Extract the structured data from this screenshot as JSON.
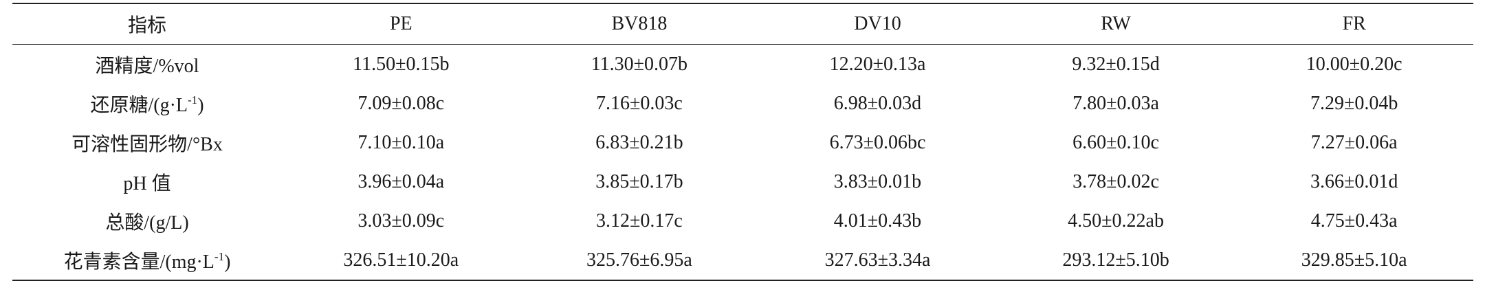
{
  "table": {
    "header": [
      "指标",
      "PE",
      "BV818",
      "DV10",
      "RW",
      "FR"
    ],
    "rows": [
      {
        "label": [
          "酒精度/%vol"
        ],
        "values": [
          "11.50±0.15b",
          "11.30±0.07b",
          "12.20±0.13a",
          "9.32±0.15d",
          "10.00±0.20c"
        ]
      },
      {
        "label": [
          "还原糖/(g·L",
          "-1",
          ")"
        ],
        "values": [
          "7.09±0.08c",
          "7.16±0.03c",
          "6.98±0.03d",
          "7.80±0.03a",
          "7.29±0.04b"
        ]
      },
      {
        "label": [
          "可溶性固形物/°Bx"
        ],
        "values": [
          "7.10±0.10a",
          "6.83±0.21b",
          "6.73±0.06bc",
          "6.60±0.10c",
          "7.27±0.06a"
        ]
      },
      {
        "label": [
          "pH 值"
        ],
        "values": [
          "3.96±0.04a",
          "3.85±0.17b",
          "3.83±0.01b",
          "3.78±0.02c",
          "3.66±0.01d"
        ]
      },
      {
        "label": [
          "总酸/(g/L)"
        ],
        "values": [
          "3.03±0.09c",
          "3.12±0.17c",
          "4.01±0.43b",
          "4.50±0.22ab",
          "4.75±0.43a"
        ]
      },
      {
        "label": [
          "花青素含量/(mg·L",
          "-1",
          ")"
        ],
        "values": [
          "326.51±10.20a",
          "325.76±6.95a",
          "327.63±3.34a",
          "293.12±5.10b",
          "329.85±5.10a"
        ]
      }
    ]
  }
}
